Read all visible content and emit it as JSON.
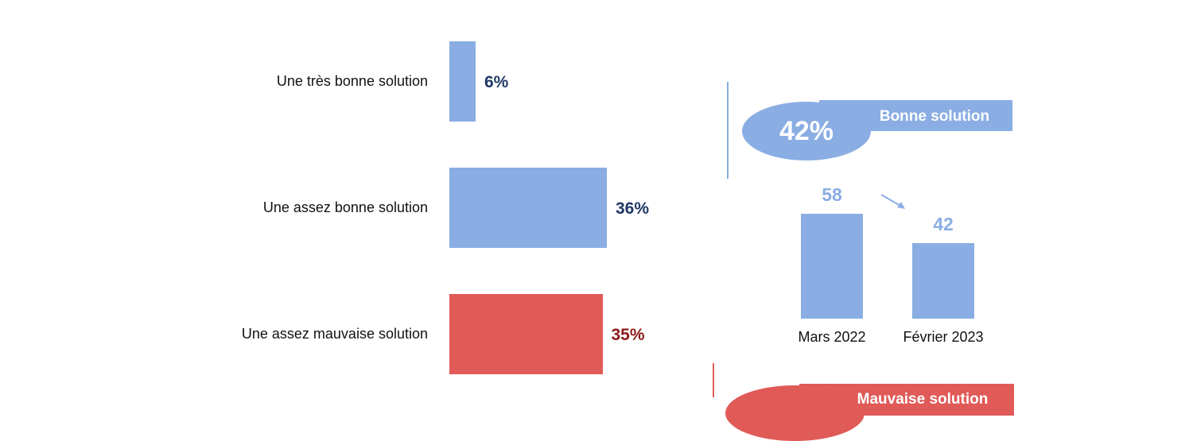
{
  "chart_data": [
    {
      "type": "bar",
      "orientation": "horizontal",
      "categories": [
        "Une très bonne solution",
        "Une assez bonne solution",
        "Une assez mauvaise solution"
      ],
      "values": [
        6,
        36,
        35
      ],
      "value_labels": [
        "6%",
        "36%",
        "35%"
      ],
      "colors": [
        "#8aade3",
        "#8aade3",
        "#e05a58"
      ],
      "label_colors": [
        "#1f3864",
        "#1f3864",
        "#8b1a1a"
      ],
      "xlim": [
        0,
        42
      ]
    },
    {
      "type": "bar",
      "categories": [
        "Mars 2022",
        "Février 2023"
      ],
      "values": [
        58,
        42
      ],
      "value_labels": [
        "58",
        "42"
      ],
      "color": "#8aade3",
      "ylim": [
        0,
        70
      ]
    }
  ],
  "summary_good": {
    "value": "42%",
    "label": "Bonne solution",
    "color": "#8aade3"
  },
  "summary_bad": {
    "label": "Mauvaise solution",
    "color": "#e05a58"
  },
  "colors": {
    "blue": "#8aade3",
    "red": "#e05a58",
    "navy": "#1f3864",
    "darkred": "#8b1a1a"
  }
}
